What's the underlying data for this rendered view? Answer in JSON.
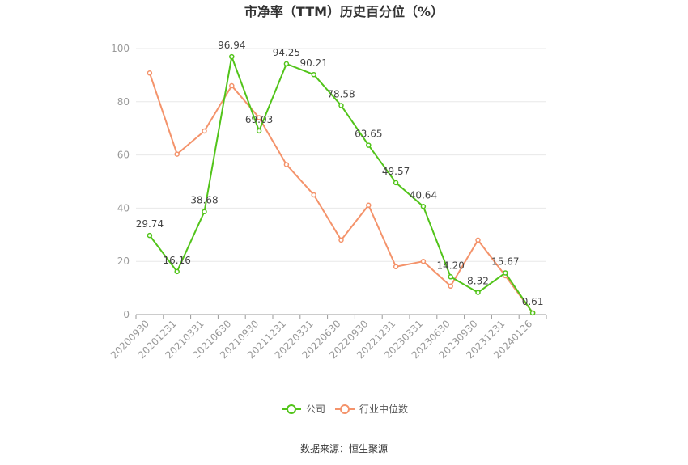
{
  "colors": {
    "company": "#52c41a",
    "industry": "#f4936b",
    "grid": "#e8e8e8",
    "axis": "#999999"
  },
  "source": "数据来源：恒生聚源",
  "chart_data": {
    "type": "line",
    "title": "市净率（TTM）历史百分位（%）",
    "categories": [
      "20200930",
      "20201231",
      "20210331",
      "20210630",
      "20210930",
      "20211231",
      "20220331",
      "20220630",
      "20220930",
      "20221231",
      "20230331",
      "20230630",
      "20230930",
      "20231231",
      "20240126"
    ],
    "series": [
      {
        "name": "公司",
        "values": [
          29.74,
          16.16,
          38.68,
          96.94,
          69.03,
          94.25,
          90.21,
          78.58,
          63.65,
          49.57,
          40.64,
          14.2,
          8.32,
          15.67,
          0.61
        ],
        "labels": [
          "29.74",
          "16.16",
          "38.68",
          "96.94",
          "69.03",
          "94.25",
          "90.21",
          "78.58",
          "63.65",
          "49.57",
          "40.64",
          "14.20",
          "8.32",
          "15.67",
          "0.61"
        ]
      },
      {
        "name": "行业中位数",
        "values": [
          90.8,
          60.3,
          69.0,
          86.0,
          74.0,
          56.4,
          45.0,
          28.0,
          41.1,
          18.0,
          20.0,
          10.7,
          28.0,
          14.6,
          0.7
        ]
      }
    ],
    "yticks": [
      0,
      20,
      40,
      60,
      80,
      100
    ],
    "ylim": [
      0,
      100
    ],
    "grid": true,
    "legend": "bottom"
  }
}
